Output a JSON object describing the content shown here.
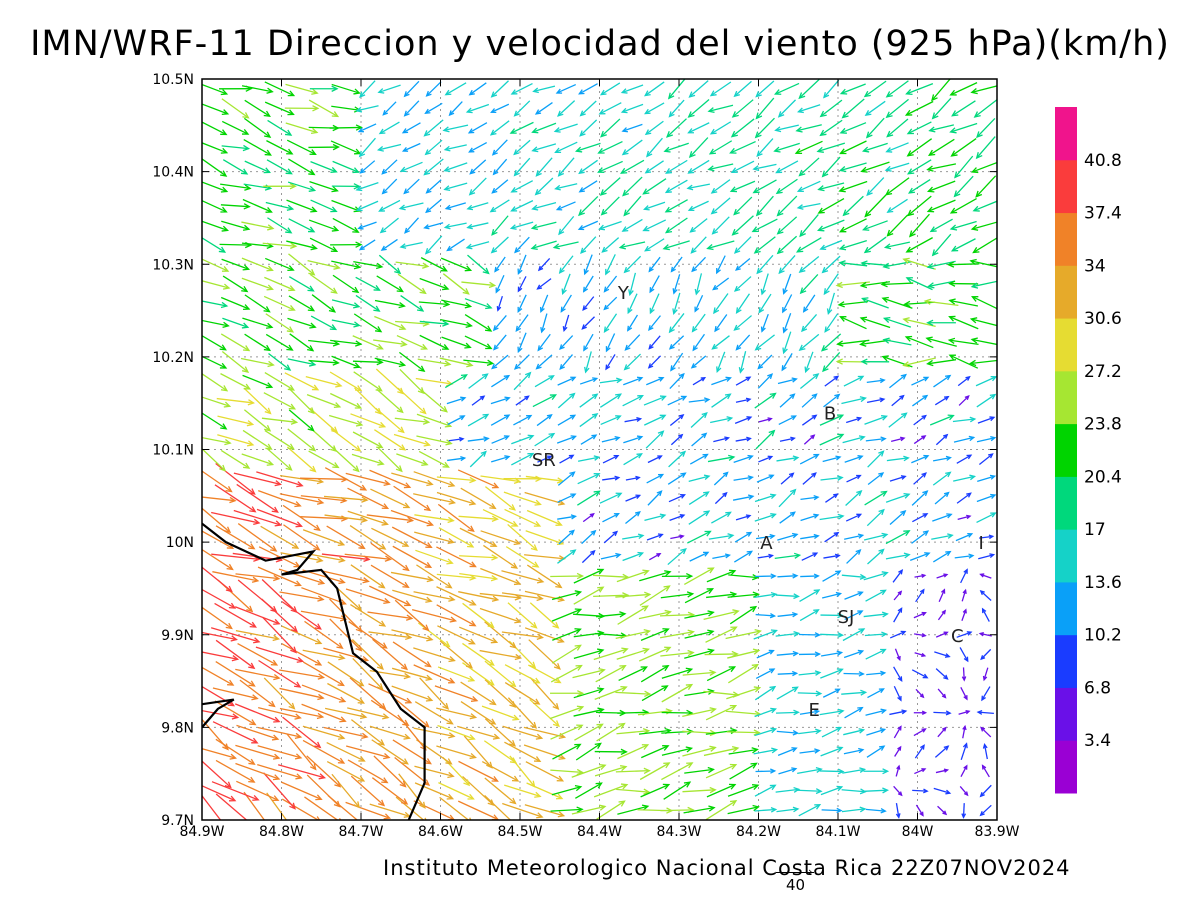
{
  "title": "IMN/WRF-11 Direccion y velocidad del viento (925 hPa)(km/h)",
  "footer": "Instituto Meteorologico Nacional Costa Rica 22Z07NOV2024",
  "reference_vector": {
    "label": "40",
    "value": 40
  },
  "map": {
    "lon_range": [
      -84.9,
      -83.9
    ],
    "lat_range": [
      9.7,
      10.5
    ],
    "x_ticks": [
      "84.9W",
      "84.8W",
      "84.7W",
      "84.6W",
      "84.5W",
      "84.4W",
      "84.3W",
      "84.2W",
      "84.1W",
      "84W",
      "83.9W"
    ],
    "y_ticks": [
      "9.7N",
      "9.8N",
      "9.9N",
      "10N",
      "10.1N",
      "10.2N",
      "10.3N",
      "10.4N",
      "10.5N"
    ],
    "grid": true,
    "labels": [
      {
        "text": "Y",
        "lon": -84.37,
        "lat": 10.27
      },
      {
        "text": "B",
        "lon": -84.11,
        "lat": 10.14
      },
      {
        "text": "SR",
        "lon": -84.47,
        "lat": 10.09
      },
      {
        "text": "A",
        "lon": -84.19,
        "lat": 10.0
      },
      {
        "text": "I",
        "lon": -83.92,
        "lat": 10.0
      },
      {
        "text": "SJ",
        "lon": -84.09,
        "lat": 9.92
      },
      {
        "text": "C",
        "lon": -83.95,
        "lat": 9.9
      },
      {
        "text": "E",
        "lon": -84.13,
        "lat": 9.82
      }
    ],
    "coastline": [
      [
        -84.9,
        10.02
      ],
      [
        -84.87,
        10.0
      ],
      [
        -84.82,
        9.98
      ],
      [
        -84.76,
        9.99
      ],
      [
        -84.78,
        9.97
      ],
      [
        -84.8,
        9.965
      ],
      [
        -84.75,
        9.97
      ],
      [
        -84.73,
        9.95
      ],
      [
        -84.71,
        9.88
      ],
      [
        -84.68,
        9.86
      ],
      [
        -84.65,
        9.82
      ],
      [
        -84.62,
        9.8
      ],
      [
        -84.62,
        9.74
      ],
      [
        -84.64,
        9.7
      ]
    ],
    "coastline2": [
      [
        -84.9,
        9.8
      ],
      [
        -84.88,
        9.82
      ],
      [
        -84.86,
        9.83
      ],
      [
        -84.9,
        9.825
      ]
    ]
  },
  "colorbar": {
    "ticks": [
      "3.4",
      "6.8",
      "10.2",
      "13.6",
      "17",
      "20.4",
      "23.8",
      "27.2",
      "30.6",
      "34",
      "37.4",
      "40.8"
    ],
    "colors": [
      "#9a00d4",
      "#6a10e8",
      "#1a3cff",
      "#0aa0f8",
      "#15d2c8",
      "#00d87c",
      "#00d400",
      "#a6e632",
      "#e6dc32",
      "#e6aa2a",
      "#f08228",
      "#fa3c3c",
      "#f0148c"
    ]
  }
}
